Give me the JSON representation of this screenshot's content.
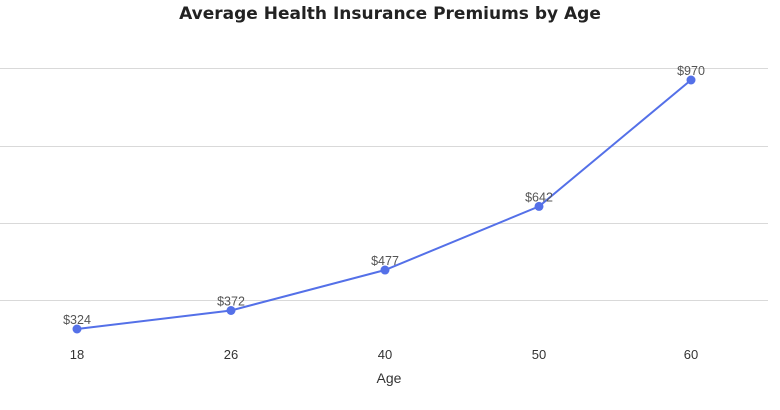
{
  "chart_data": {
    "type": "line",
    "title": "Average Health Insurance Premiums by Age",
    "xlabel": "Age",
    "ylabel": "",
    "categories": [
      "18",
      "26",
      "40",
      "50",
      "60"
    ],
    "series": [
      {
        "values": [
          324,
          372,
          477,
          642,
          970
        ],
        "labels": [
          "$324",
          "$372",
          "$477",
          "$642",
          "$970"
        ]
      }
    ],
    "ylim": [
      250,
      1050
    ],
    "grid": true,
    "legend": "none",
    "colors": {
      "line": "#5470e8",
      "grid": "#d9d9d9"
    }
  }
}
